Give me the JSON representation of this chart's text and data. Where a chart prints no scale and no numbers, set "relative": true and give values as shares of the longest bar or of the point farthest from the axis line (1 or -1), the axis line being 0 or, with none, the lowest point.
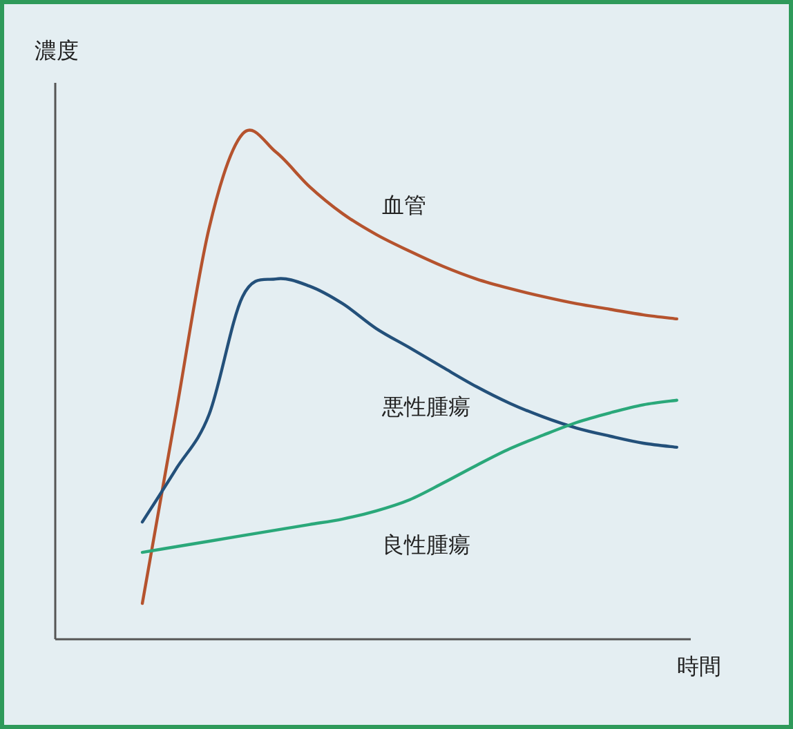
{
  "chart_data": {
    "type": "line",
    "relative": true,
    "xlabel": "時間",
    "ylabel": "濃度",
    "grid": false,
    "legend": false,
    "marker": "none",
    "line_style": "solid",
    "categories": [
      null,
      null,
      null,
      null,
      null,
      null,
      null,
      null,
      null,
      null,
      null,
      null,
      null,
      null,
      null,
      null,
      null
    ],
    "series": [
      {
        "name": "血管",
        "color": "#b5532e",
        "values": [
          0.071,
          0.445,
          0.814,
          1.0,
          0.964,
          0.896,
          0.842,
          0.801,
          0.768,
          0.738,
          0.713,
          0.694,
          0.678,
          0.664,
          0.653,
          0.642,
          0.634
        ]
      },
      {
        "name": "悪性腫瘍",
        "color": "#23507a",
        "values": [
          0.232,
          0.336,
          0.445,
          0.678,
          0.713,
          0.699,
          0.664,
          0.615,
          0.577,
          0.538,
          0.5,
          0.467,
          0.44,
          0.418,
          0.402,
          0.388,
          0.38
        ]
      },
      {
        "name": "良性腫瘍",
        "color": "#2aa87a",
        "values": [
          0.172,
          0.183,
          0.194,
          0.205,
          0.216,
          0.227,
          0.238,
          0.254,
          0.276,
          0.309,
          0.344,
          0.377,
          0.404,
          0.429,
          0.448,
          0.464,
          0.473
        ]
      }
    ]
  }
}
